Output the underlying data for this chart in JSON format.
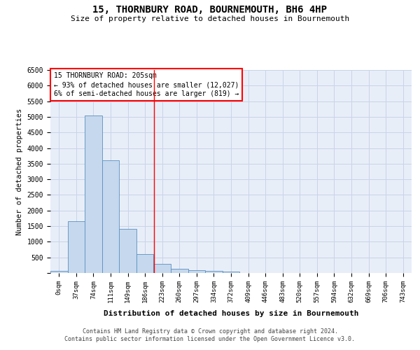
{
  "title": "15, THORNBURY ROAD, BOURNEMOUTH, BH6 4HP",
  "subtitle": "Size of property relative to detached houses in Bournemouth",
  "xlabel": "Distribution of detached houses by size in Bournemouth",
  "ylabel": "Number of detached properties",
  "bar_color": "#c5d8ed",
  "bar_edge_color": "#5a8fc0",
  "grid_color": "#c8d4e8",
  "background_color": "#e8eef8",
  "categories": [
    "0sqm",
    "37sqm",
    "74sqm",
    "111sqm",
    "149sqm",
    "186sqm",
    "223sqm",
    "260sqm",
    "297sqm",
    "334sqm",
    "372sqm",
    "409sqm",
    "446sqm",
    "483sqm",
    "520sqm",
    "557sqm",
    "594sqm",
    "632sqm",
    "669sqm",
    "706sqm",
    "743sqm"
  ],
  "values": [
    75,
    1650,
    5050,
    3600,
    1420,
    610,
    290,
    145,
    100,
    75,
    50,
    0,
    0,
    0,
    0,
    0,
    0,
    0,
    0,
    0,
    0
  ],
  "ylim": [
    0,
    6500
  ],
  "yticks": [
    0,
    500,
    1000,
    1500,
    2000,
    2500,
    3000,
    3500,
    4000,
    4500,
    5000,
    5500,
    6000,
    6500
  ],
  "red_line_x": 5.54,
  "annotation_text": "15 THORNBURY ROAD: 205sqm\n← 93% of detached houses are smaller (12,027)\n6% of semi-detached houses are larger (819) →",
  "footer1": "Contains HM Land Registry data © Crown copyright and database right 2024.",
  "footer2": "Contains public sector information licensed under the Open Government Licence v3.0."
}
